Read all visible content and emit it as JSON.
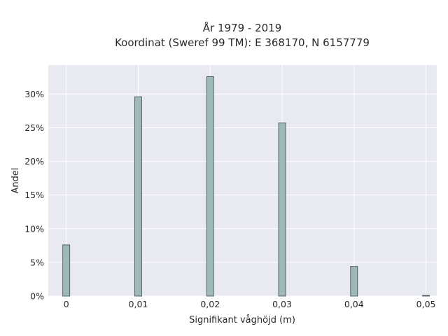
{
  "chart_data": {
    "type": "bar",
    "title": "År 1979 - 2019",
    "subtitle": "Koordinat (Sweref 99 TM): E 368170, N 6157779",
    "xlabel": "Signifikant våghöjd (m)",
    "ylabel": "Andel",
    "x": [
      0,
      0.01,
      0.02,
      0.03,
      0.04,
      0.05
    ],
    "x_tick_labels": [
      "0",
      "0,01",
      "0,02",
      "0,03",
      "0,04",
      "0,05"
    ],
    "values": [
      7.6,
      29.6,
      32.6,
      25.7,
      4.4,
      0.1
    ],
    "y_ticks": [
      0,
      5,
      10,
      15,
      20,
      25,
      30
    ],
    "y_tick_labels": [
      "0%",
      "5%",
      "10%",
      "15%",
      "20%",
      "25%",
      "30%"
    ],
    "xlim": [
      -0.0025,
      0.0515
    ],
    "ylim": [
      0,
      34.3
    ],
    "grid": true,
    "colors": {
      "background": "#e8e9f1",
      "grid": "#ffffff",
      "bar_fill": "#9fb8b8",
      "bar_stroke": "#3e4a4a"
    }
  }
}
